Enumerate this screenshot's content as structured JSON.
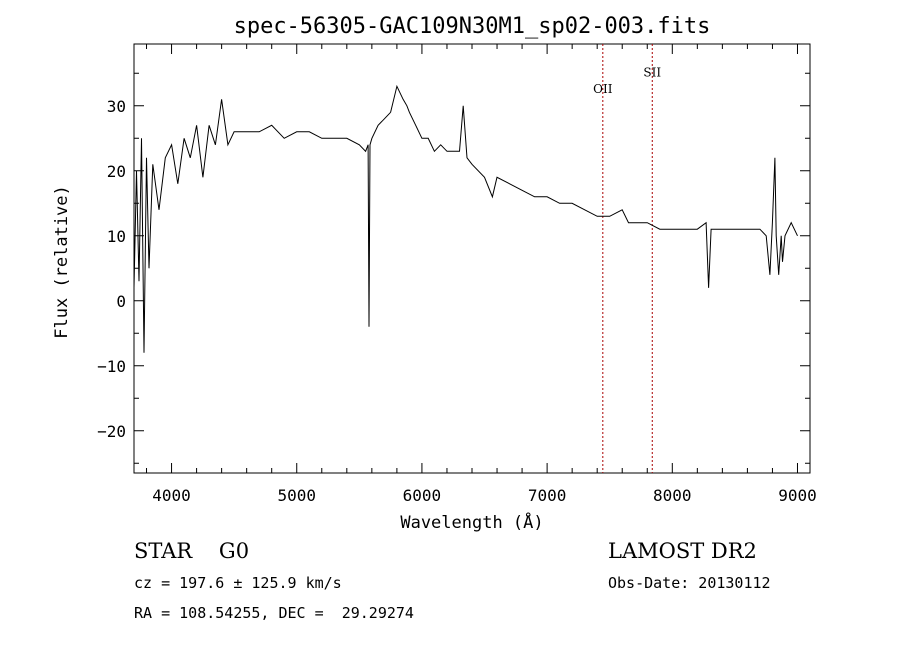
{
  "chart_data": {
    "type": "line",
    "title": "spec-56305-GAC109N30M1_sp02-003.fits",
    "xlabel": "Wavelength (Å)",
    "ylabel": "Flux (relative)",
    "xlim": [
      3700,
      9100
    ],
    "ylim": [
      -26.5,
      39.5
    ],
    "x_ticks": [
      "4000",
      "5000",
      "6000",
      "7000",
      "8000",
      "9000"
    ],
    "y_ticks": [
      "30",
      "20",
      "10",
      "0",
      "−10",
      "−20"
    ],
    "x_tick_values": [
      4000,
      5000,
      6000,
      7000,
      8000,
      9000
    ],
    "y_tick_values": [
      30,
      20,
      10,
      0,
      -10,
      -20
    ],
    "grid": false,
    "line_color": "#000000",
    "marker_color": "#aa0000",
    "series": [
      {
        "x": [
          3700,
          3720,
          3740,
          3760,
          3780,
          3800,
          3820,
          3850,
          3900,
          3950,
          4000,
          4050,
          4100,
          4150,
          4200,
          4250,
          4300,
          4350,
          4400,
          4450,
          4500,
          4600,
          4700,
          4800,
          4900,
          5000,
          5100,
          5200,
          5300,
          5400,
          5500,
          5550,
          5570,
          5577,
          5585,
          5600,
          5650,
          5700,
          5750,
          5800,
          5850,
          5880,
          5900,
          5950,
          6000,
          6050,
          6100,
          6150,
          6200,
          6250,
          6300,
          6330,
          6360,
          6400,
          6500,
          6563,
          6600,
          6700,
          6800,
          6900,
          7000,
          7100,
          7200,
          7300,
          7400,
          7500,
          7600,
          7650,
          7700,
          7800,
          7900,
          8000,
          8100,
          8200,
          8270,
          8290,
          8310,
          8400,
          8500,
          8600,
          8700,
          8750,
          8780,
          8800,
          8820,
          8830,
          8850,
          8870,
          8880,
          8900,
          8950,
          9000
        ],
        "y": [
          2,
          20,
          3,
          25,
          -8,
          22,
          5,
          21,
          14,
          22,
          24,
          18,
          25,
          22,
          27,
          19,
          27,
          24,
          31,
          24,
          26,
          26,
          26,
          27,
          25,
          26,
          26,
          25,
          25,
          25,
          24,
          23,
          24,
          -4,
          24,
          25,
          27,
          28,
          29,
          33,
          31,
          30,
          29,
          27,
          25,
          25,
          23,
          24,
          23,
          23,
          23,
          30,
          22,
          21,
          19,
          16,
          19,
          18,
          17,
          16,
          16,
          15,
          15,
          14,
          13,
          13,
          14,
          12,
          12,
          12,
          11,
          11,
          11,
          11,
          12,
          2,
          11,
          11,
          11,
          11,
          11,
          10,
          4,
          12,
          22,
          10,
          4,
          10,
          6,
          10,
          12,
          10
        ]
      }
    ],
    "line_markers": [
      {
        "label": "OII",
        "x": 7445,
        "y_label": 32
      },
      {
        "label": "SII",
        "x": 7840,
        "y_label": 34.5
      }
    ]
  },
  "info": {
    "left_line1": "STAR    G0",
    "left_line2": "cz = 197.6 ± 125.9 km/s",
    "left_line3": "RA = 108.54255, DEC =  29.29274",
    "right_line1": "LAMOST DR2",
    "right_line2": "Obs-Date: 20130112"
  }
}
